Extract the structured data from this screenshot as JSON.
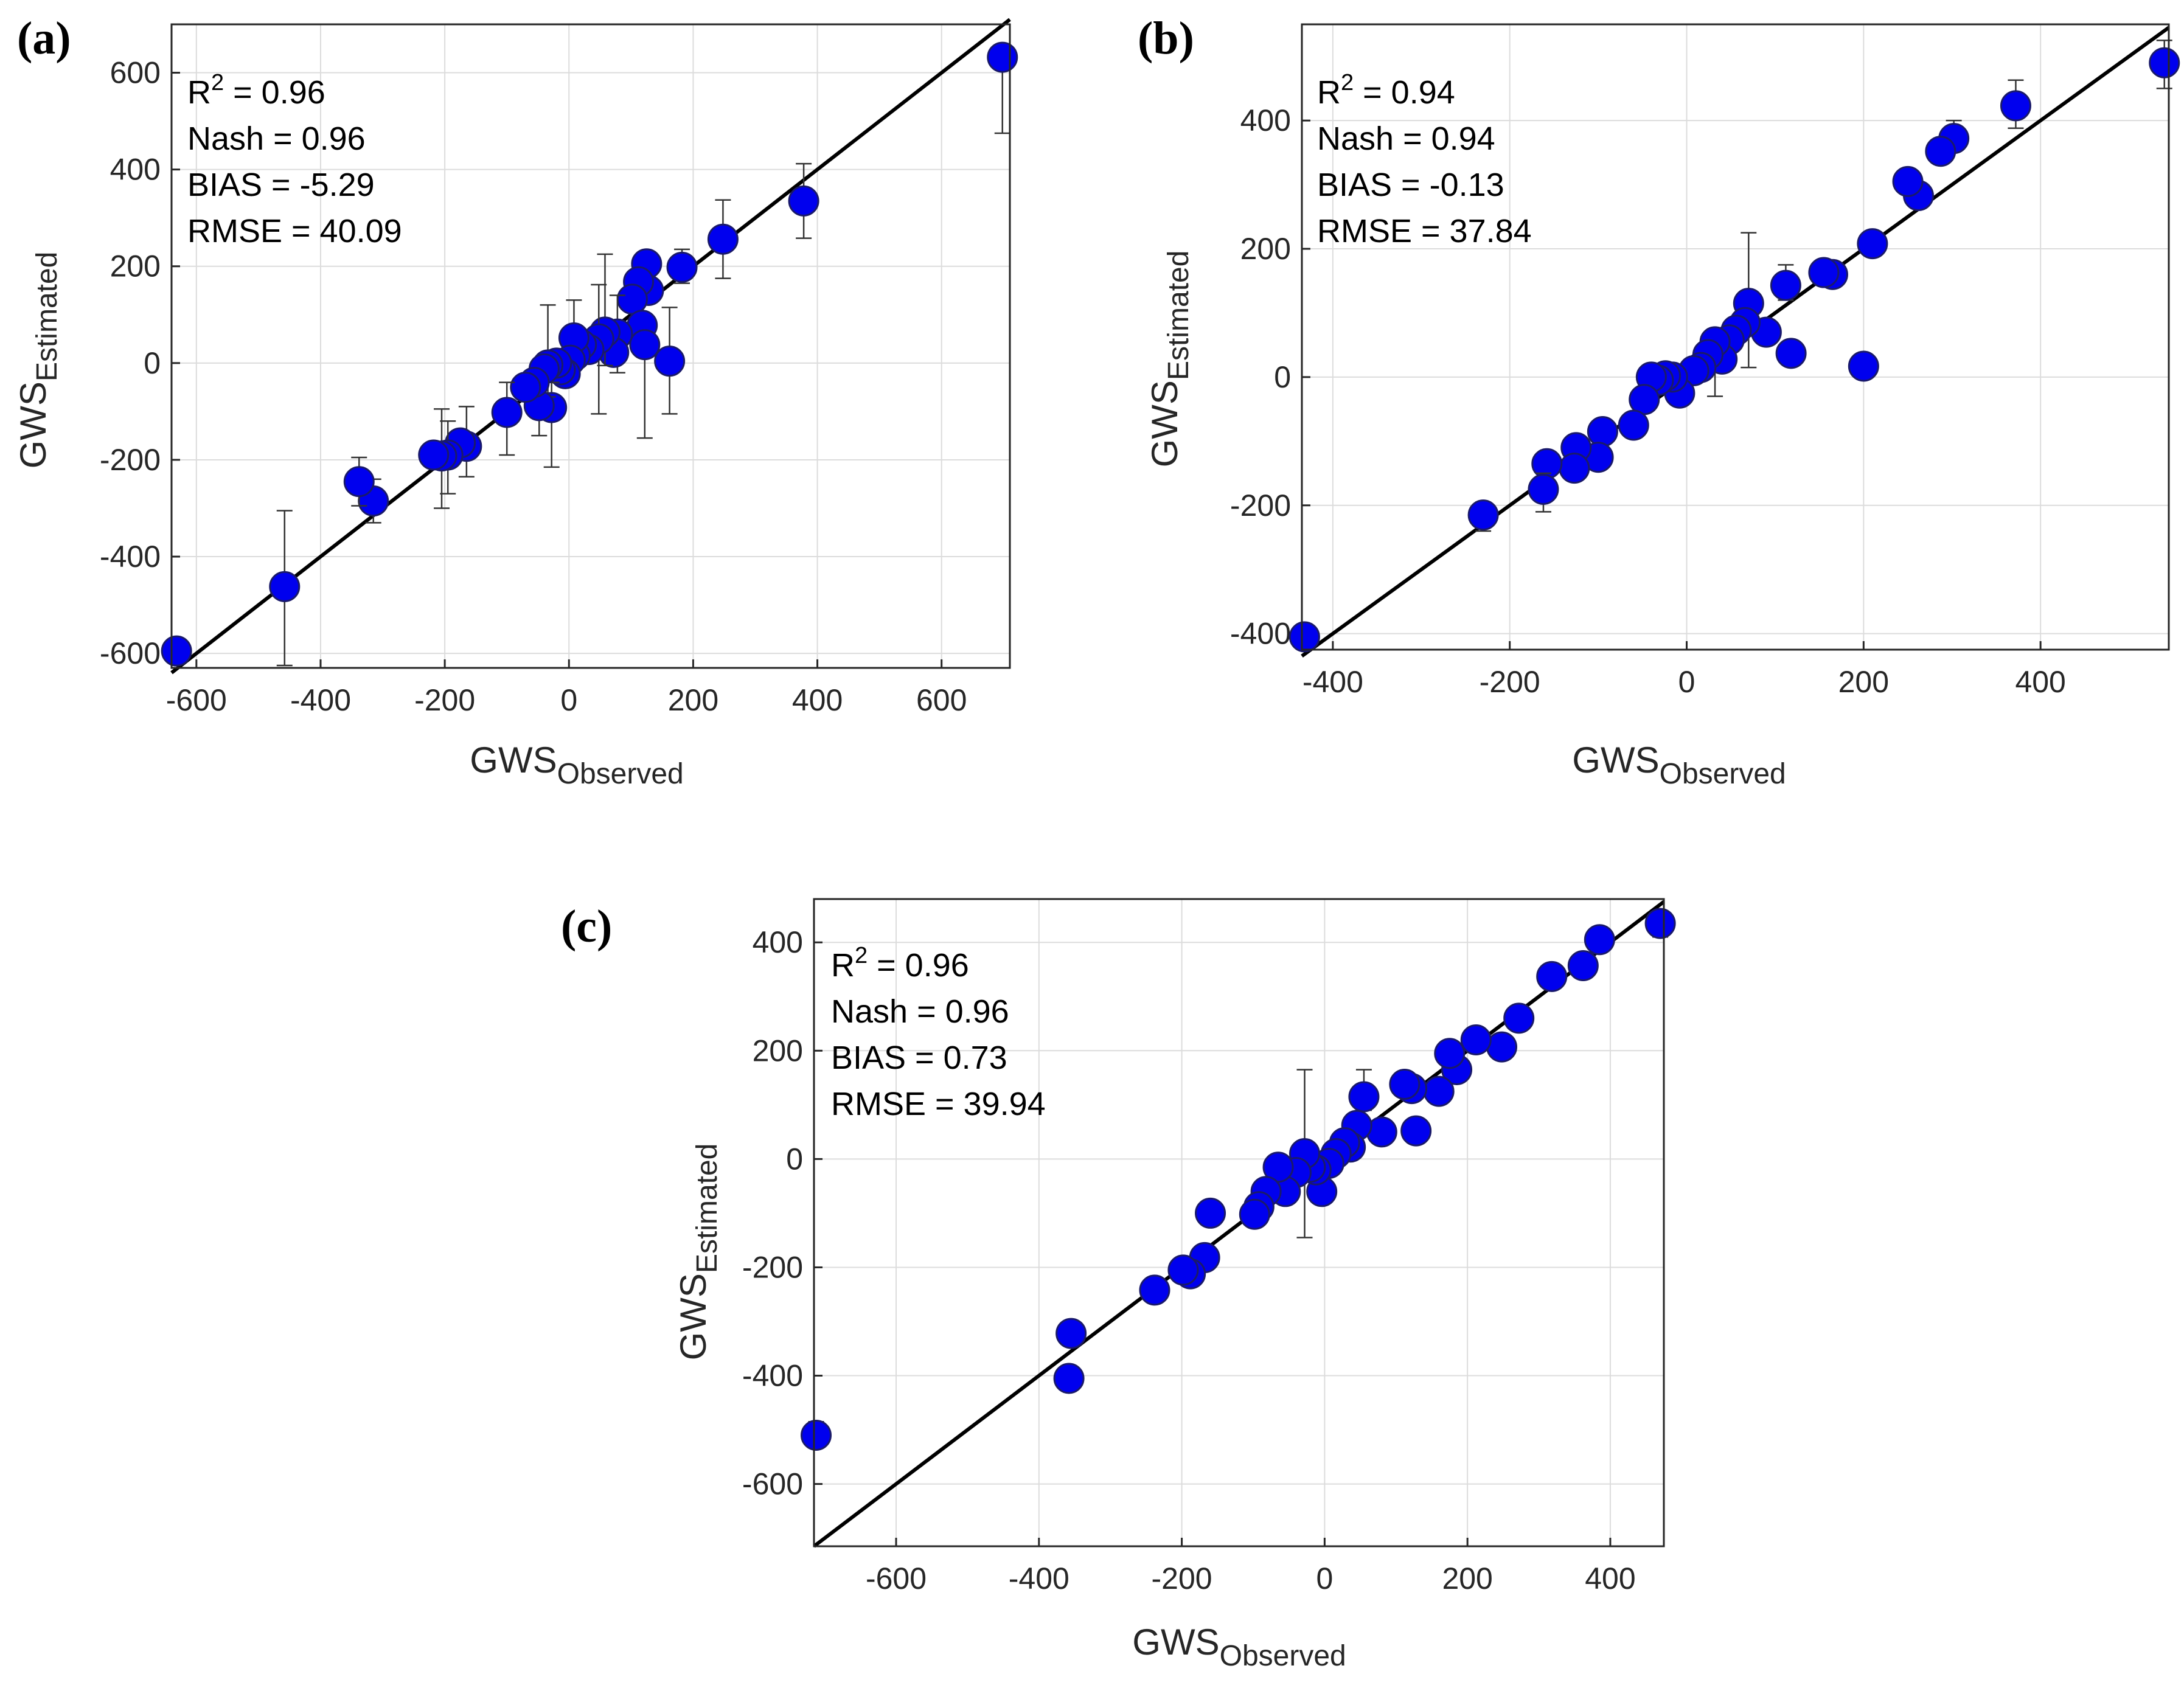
{
  "colors": {
    "marker": "#0000ee",
    "marker_edge": "#1a1a6a",
    "line": "#000000",
    "grid": "#dcdcdc"
  },
  "chart_data": [
    {
      "type": "scatter",
      "panel": "(a)",
      "xlabel": {
        "main": "GWS",
        "sub": "Observed"
      },
      "ylabel": {
        "main": "GWS",
        "sub": "Estimated"
      },
      "xlim": [
        -640,
        710
      ],
      "ylim": [
        -630,
        700
      ],
      "xticks": [
        -600,
        -400,
        -200,
        0,
        200,
        400,
        600
      ],
      "yticks": [
        -600,
        -400,
        -200,
        0,
        200,
        400,
        600
      ],
      "grid": true,
      "stats": {
        "r2": "R² = 0.96",
        "nash": "Nash = 0.96",
        "bias": "BIAS = -5.29",
        "rmse": "RMSE = 40.09"
      },
      "fit_line": [
        [
          -640,
          -640
        ],
        [
          710,
          710
        ]
      ],
      "points": [
        {
          "x": 698,
          "y": 632,
          "lo": 475,
          "hi": 632
        },
        {
          "x": 378,
          "y": 335,
          "lo": 258,
          "hi": 412
        },
        {
          "x": 248,
          "y": 256,
          "lo": 175,
          "hi": 337
        },
        {
          "x": 182,
          "y": 198,
          "lo": 165,
          "hi": 235
        },
        {
          "x": 162,
          "y": 4,
          "lo": -105,
          "hi": 115
        },
        {
          "x": 125,
          "y": 205
        },
        {
          "x": 128,
          "y": 150
        },
        {
          "x": 112,
          "y": 168
        },
        {
          "x": 102,
          "y": 132
        },
        {
          "x": 118,
          "y": 78
        },
        {
          "x": 122,
          "y": 38,
          "lo": -155,
          "hi": 38
        },
        {
          "x": 78,
          "y": 60,
          "lo": -20,
          "hi": 140
        },
        {
          "x": 72,
          "y": 22
        },
        {
          "x": 58,
          "y": 64,
          "lo": -5,
          "hi": 225
        },
        {
          "x": 48,
          "y": 50,
          "lo": -105,
          "hi": 162
        },
        {
          "x": 32,
          "y": 28
        },
        {
          "x": 20,
          "y": 38
        },
        {
          "x": 10,
          "y": 16
        },
        {
          "x": 8,
          "y": 52,
          "lo": 0,
          "hi": 130
        },
        {
          "x": 2,
          "y": 6
        },
        {
          "x": -6,
          "y": -22
        },
        {
          "x": -14,
          "y": -14
        },
        {
          "x": -20,
          "y": 0
        },
        {
          "x": -28,
          "y": -92,
          "lo": -215,
          "hi": -40
        },
        {
          "x": -34,
          "y": -4,
          "lo": -70,
          "hi": 120
        },
        {
          "x": -40,
          "y": -12
        },
        {
          "x": -48,
          "y": -88,
          "lo": -150,
          "hi": -30
        },
        {
          "x": -56,
          "y": -40
        },
        {
          "x": -70,
          "y": -50
        },
        {
          "x": -100,
          "y": -102,
          "lo": -190,
          "hi": -40
        },
        {
          "x": -165,
          "y": -172,
          "lo": -235,
          "hi": -90
        },
        {
          "x": -175,
          "y": -165
        },
        {
          "x": -195,
          "y": -190,
          "lo": -270,
          "hi": -120
        },
        {
          "x": -205,
          "y": -192,
          "lo": -300,
          "hi": -95
        },
        {
          "x": -218,
          "y": -190
        },
        {
          "x": -315,
          "y": -285,
          "lo": -330,
          "hi": -240
        },
        {
          "x": -338,
          "y": -245,
          "lo": -295,
          "hi": -195
        },
        {
          "x": -458,
          "y": -462,
          "lo": -625,
          "hi": -305
        },
        {
          "x": -632,
          "y": -595
        }
      ]
    },
    {
      "type": "scatter",
      "panel": "(b)",
      "xlabel": {
        "main": "GWS",
        "sub": "Observed"
      },
      "ylabel": {
        "main": "GWS",
        "sub": "Estimated"
      },
      "xlim": [
        -435,
        545
      ],
      "ylim": [
        -425,
        550
      ],
      "xticks": [
        -400,
        -200,
        0,
        200,
        400
      ],
      "yticks": [
        -400,
        -200,
        0,
        200,
        400
      ],
      "grid": true,
      "stats": {
        "r2": "R² = 0.94",
        "nash": "Nash = 0.94",
        "bias": "BIAS = -0.13",
        "rmse": "RMSE = 37.84"
      },
      "fit_line": [
        [
          -435,
          -435
        ],
        [
          545,
          545
        ]
      ],
      "points": [
        {
          "x": 540,
          "y": 490,
          "lo": 450,
          "hi": 525
        },
        {
          "x": 372,
          "y": 423,
          "lo": 388,
          "hi": 463
        },
        {
          "x": 302,
          "y": 372,
          "lo": 352,
          "hi": 400
        },
        {
          "x": 287,
          "y": 352
        },
        {
          "x": 262,
          "y": 283
        },
        {
          "x": 250,
          "y": 305
        },
        {
          "x": 210,
          "y": 208
        },
        {
          "x": 200,
          "y": 17
        },
        {
          "x": 165,
          "y": 160,
          "lo": 140,
          "hi": 180
        },
        {
          "x": 155,
          "y": 163
        },
        {
          "x": 112,
          "y": 143,
          "lo": 120,
          "hi": 175
        },
        {
          "x": 118,
          "y": 37
        },
        {
          "x": 90,
          "y": 70
        },
        {
          "x": 70,
          "y": 115,
          "lo": 15,
          "hi": 225
        },
        {
          "x": 66,
          "y": 85
        },
        {
          "x": 56,
          "y": 73
        },
        {
          "x": 48,
          "y": 58
        },
        {
          "x": 40,
          "y": 28
        },
        {
          "x": 32,
          "y": 55,
          "lo": -30,
          "hi": 75
        },
        {
          "x": 24,
          "y": 35
        },
        {
          "x": 16,
          "y": 15
        },
        {
          "x": 8,
          "y": 10
        },
        {
          "x": -8,
          "y": -25
        },
        {
          "x": -16,
          "y": 0
        },
        {
          "x": -24,
          "y": 2
        },
        {
          "x": -32,
          "y": -5
        },
        {
          "x": -40,
          "y": 0
        },
        {
          "x": -48,
          "y": -35
        },
        {
          "x": -60,
          "y": -75
        },
        {
          "x": -95,
          "y": -85
        },
        {
          "x": -100,
          "y": -125
        },
        {
          "x": -125,
          "y": -110
        },
        {
          "x": -127,
          "y": -142
        },
        {
          "x": -158,
          "y": -135
        },
        {
          "x": -162,
          "y": -175,
          "lo": -210,
          "hi": -150
        },
        {
          "x": -230,
          "y": -215,
          "lo": -240,
          "hi": -195
        },
        {
          "x": -432,
          "y": -405,
          "lo": -420,
          "hi": -390
        }
      ]
    },
    {
      "type": "scatter",
      "panel": "(c)",
      "xlabel": {
        "main": "GWS",
        "sub": "Observed"
      },
      "ylabel": {
        "main": "GWS",
        "sub": "Estimated"
      },
      "xlim": [
        -715,
        475
      ],
      "ylim": [
        -715,
        480
      ],
      "xticks": [
        -600,
        -400,
        -200,
        0,
        200,
        400
      ],
      "yticks": [
        -600,
        -400,
        -200,
        0,
        200,
        400
      ],
      "grid": true,
      "stats": {
        "r2": "R² = 0.96",
        "nash": "Nash = 0.96",
        "bias": "BIAS = 0.73",
        "rmse": "RMSE = 39.94"
      },
      "fit_line": [
        [
          -715,
          -715
        ],
        [
          475,
          475
        ]
      ],
      "points": [
        {
          "x": 470,
          "y": 435,
          "lo": 410,
          "hi": 445
        },
        {
          "x": 385,
          "y": 405
        },
        {
          "x": 362,
          "y": 357
        },
        {
          "x": 318,
          "y": 337,
          "lo": 315,
          "hi": 352
        },
        {
          "x": 272,
          "y": 260
        },
        {
          "x": 248,
          "y": 207,
          "lo": 185,
          "hi": 225
        },
        {
          "x": 212,
          "y": 220
        },
        {
          "x": 185,
          "y": 165
        },
        {
          "x": 175,
          "y": 195
        },
        {
          "x": 160,
          "y": 125
        },
        {
          "x": 122,
          "y": 130
        },
        {
          "x": 112,
          "y": 138
        },
        {
          "x": 128,
          "y": 52
        },
        {
          "x": 80,
          "y": 50
        },
        {
          "x": 55,
          "y": 115,
          "lo": 90,
          "hi": 165
        },
        {
          "x": 45,
          "y": 62
        },
        {
          "x": 36,
          "y": 22
        },
        {
          "x": 28,
          "y": 30
        },
        {
          "x": 16,
          "y": 10
        },
        {
          "x": 6,
          "y": -8
        },
        {
          "x": -4,
          "y": -60
        },
        {
          "x": -12,
          "y": -20
        },
        {
          "x": -20,
          "y": -15
        },
        {
          "x": -28,
          "y": 10,
          "lo": -145,
          "hi": 165
        },
        {
          "x": -40,
          "y": -25
        },
        {
          "x": -55,
          "y": -60
        },
        {
          "x": -65,
          "y": -15
        },
        {
          "x": -82,
          "y": -60
        },
        {
          "x": -92,
          "y": -88
        },
        {
          "x": -98,
          "y": -102
        },
        {
          "x": -160,
          "y": -100,
          "lo": -115,
          "hi": -85
        },
        {
          "x": -168,
          "y": -182
        },
        {
          "x": -188,
          "y": -212
        },
        {
          "x": -198,
          "y": -205
        },
        {
          "x": -238,
          "y": -242
        },
        {
          "x": -355,
          "y": -322
        },
        {
          "x": -358,
          "y": -405
        },
        {
          "x": -712,
          "y": -510,
          "lo": -530,
          "hi": -485
        }
      ]
    }
  ]
}
